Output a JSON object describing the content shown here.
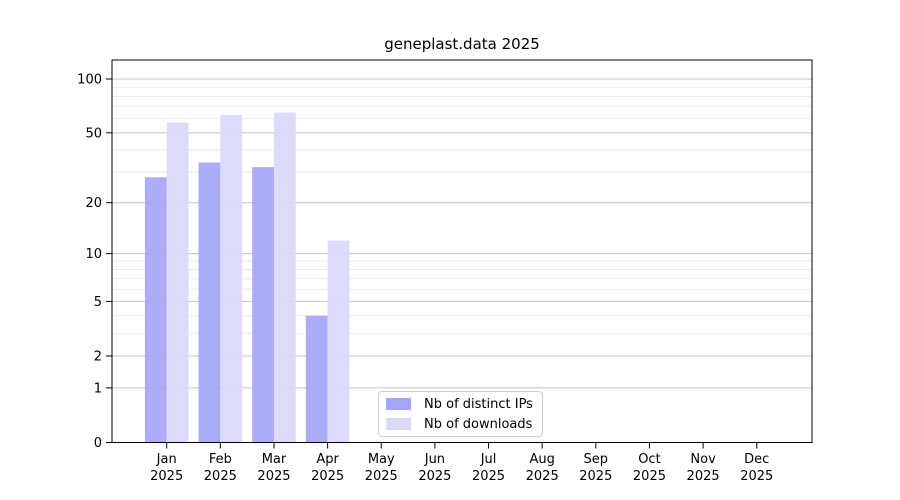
{
  "chart_data": {
    "type": "bar",
    "title": "geneplast.data 2025",
    "categories": [
      "Jan",
      "Feb",
      "Mar",
      "Apr",
      "May",
      "Jun",
      "Jul",
      "Aug",
      "Sep",
      "Oct",
      "Nov",
      "Dec"
    ],
    "x_year_label": "2025",
    "series": [
      {
        "name": "Nb of distinct IPs",
        "color": "#a5a5f7",
        "values": [
          28,
          34,
          32,
          4,
          0,
          0,
          0,
          0,
          0,
          0,
          0,
          0
        ]
      },
      {
        "name": "Nb of downloads",
        "color": "#d9d9fa",
        "values": [
          57,
          63,
          65,
          12,
          0,
          0,
          0,
          0,
          0,
          0,
          0,
          0
        ]
      }
    ],
    "y_scale": "log10(value+1)",
    "y_ticks": [
      100,
      50,
      20,
      10,
      5,
      2,
      1,
      0
    ],
    "y_major_gridlines": [
      1,
      2,
      5,
      10,
      20,
      50,
      100
    ],
    "y_minor_gridlines": [
      3,
      4,
      6,
      7,
      8,
      9,
      30,
      40,
      60,
      70,
      80,
      90
    ],
    "ylim": [
      0,
      120
    ],
    "grid": true,
    "legend_position": "lower center"
  },
  "colors": {
    "background": "#ffffff",
    "spine": "#000000",
    "major_grid": "#c3c3c3",
    "minor_grid": "#eaeaea",
    "text": "#000000",
    "legend_border": "#cccccc"
  }
}
